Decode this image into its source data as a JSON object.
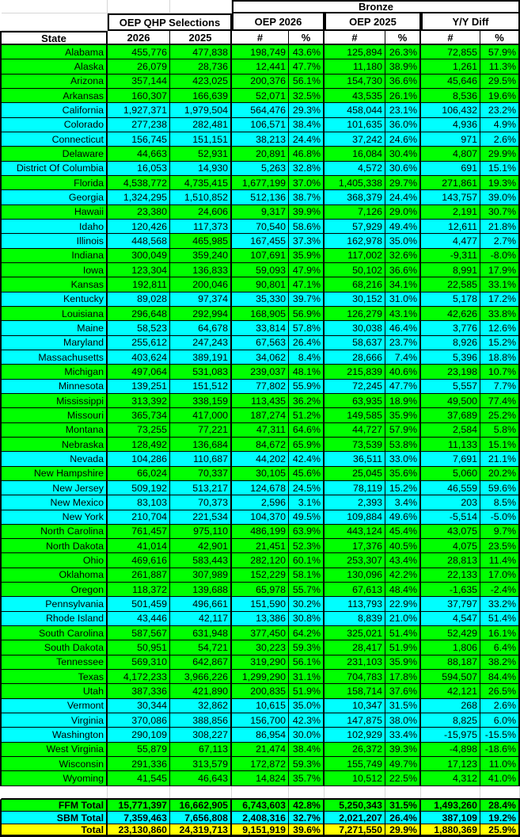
{
  "header": {
    "bronze": "Bronze",
    "oep_qhp_selections": "OEP QHP Selections",
    "oep_2026": "OEP 2026",
    "oep_2025": "OEP 2025",
    "yy_diff": "Y/Y Diff",
    "state": "State",
    "col_2026": "2026",
    "col_2025": "2025",
    "num_symbol": "#",
    "pct_symbol": "%"
  },
  "colors": {
    "ffm_green": "#00FF00",
    "sbm_cyan": "#00FFFF",
    "total_yellow": "#FFFF00",
    "border_black": "#000000"
  },
  "columns_order": [
    "qhp_2026",
    "qhp_2025",
    "bronze_2026_count",
    "bronze_2026_pct",
    "bronze_2025_count",
    "bronze_2025_pct",
    "yy_diff_count",
    "yy_diff_pct"
  ],
  "rows": [
    {
      "state": "Alabama",
      "market": "ffm",
      "values": [
        "455,776",
        "477,838",
        "198,749",
        "43.6%",
        "125,894",
        "26.3%",
        "72,855",
        "57.9%"
      ]
    },
    {
      "state": "Alaska",
      "market": "ffm",
      "values": [
        "26,079",
        "28,736",
        "12,441",
        "47.7%",
        "11,180",
        "38.9%",
        "1,261",
        "11.3%"
      ]
    },
    {
      "state": "Arizona",
      "market": "ffm",
      "values": [
        "357,144",
        "423,025",
        "200,376",
        "56.1%",
        "154,730",
        "36.6%",
        "45,646",
        "29.5%"
      ]
    },
    {
      "state": "Arkansas",
      "market": "ffm",
      "values": [
        "160,307",
        "166,639",
        "52,071",
        "32.5%",
        "43,535",
        "26.1%",
        "8,536",
        "19.6%"
      ]
    },
    {
      "state": "California",
      "market": "sbm",
      "values": [
        "1,927,371",
        "1,979,504",
        "564,476",
        "29.3%",
        "458,044",
        "23.1%",
        "106,432",
        "23.2%"
      ]
    },
    {
      "state": "Colorado",
      "market": "sbm",
      "values": [
        "277,238",
        "282,481",
        "106,571",
        "38.4%",
        "101,635",
        "36.0%",
        "4,936",
        "4.9%"
      ]
    },
    {
      "state": "Connecticut",
      "market": "sbm",
      "values": [
        "156,745",
        "151,151",
        "38,213",
        "24.4%",
        "37,242",
        "24.6%",
        "971",
        "2.6%"
      ]
    },
    {
      "state": "Delaware",
      "market": "ffm",
      "values": [
        "44,663",
        "52,931",
        "20,891",
        "46.8%",
        "16,084",
        "30.4%",
        "4,807",
        "29.9%"
      ]
    },
    {
      "state": "District Of Columbia",
      "market": "sbm",
      "values": [
        "16,053",
        "14,930",
        "5,263",
        "32.8%",
        "4,572",
        "30.6%",
        "691",
        "15.1%"
      ]
    },
    {
      "state": "Florida",
      "market": "ffm",
      "values": [
        "4,538,772",
        "4,735,415",
        "1,677,199",
        "37.0%",
        "1,405,338",
        "29.7%",
        "271,861",
        "19.3%"
      ]
    },
    {
      "state": "Georgia",
      "market": "sbm",
      "values": [
        "1,324,295",
        "1,510,852",
        "512,136",
        "38.7%",
        "368,379",
        "24.4%",
        "143,757",
        "39.0%"
      ]
    },
    {
      "state": "Hawaii",
      "market": "ffm",
      "values": [
        "23,380",
        "24,606",
        "9,317",
        "39.9%",
        "7,126",
        "29.0%",
        "2,191",
        "30.7%"
      ]
    },
    {
      "state": "Idaho",
      "market": "sbm",
      "values": [
        "120,426",
        "117,373",
        "70,540",
        "58.6%",
        "57,929",
        "49.4%",
        "12,611",
        "21.8%"
      ]
    },
    {
      "state": "Illinois",
      "market": "sbm",
      "values": [
        "448,568",
        "465,985",
        "167,455",
        "37.3%",
        "162,978",
        "35.0%",
        "4,477",
        "2.7%"
      ],
      "overrides": {
        "1": "ffm"
      }
    },
    {
      "state": "Indiana",
      "market": "ffm",
      "values": [
        "300,049",
        "359,240",
        "107,691",
        "35.9%",
        "117,002",
        "32.6%",
        "-9,311",
        "-8.0%"
      ]
    },
    {
      "state": "Iowa",
      "market": "ffm",
      "values": [
        "123,304",
        "136,833",
        "59,093",
        "47.9%",
        "50,102",
        "36.6%",
        "8,991",
        "17.9%"
      ]
    },
    {
      "state": "Kansas",
      "market": "ffm",
      "values": [
        "192,811",
        "200,046",
        "90,801",
        "47.1%",
        "68,216",
        "34.1%",
        "22,585",
        "33.1%"
      ]
    },
    {
      "state": "Kentucky",
      "market": "sbm",
      "values": [
        "89,028",
        "97,374",
        "35,330",
        "39.7%",
        "30,152",
        "31.0%",
        "5,178",
        "17.2%"
      ]
    },
    {
      "state": "Louisiana",
      "market": "ffm",
      "values": [
        "296,648",
        "292,994",
        "168,905",
        "56.9%",
        "126,279",
        "43.1%",
        "42,626",
        "33.8%"
      ]
    },
    {
      "state": "Maine",
      "market": "sbm",
      "values": [
        "58,523",
        "64,678",
        "33,814",
        "57.8%",
        "30,038",
        "46.4%",
        "3,776",
        "12.6%"
      ]
    },
    {
      "state": "Maryland",
      "market": "sbm",
      "values": [
        "255,612",
        "247,243",
        "67,563",
        "26.4%",
        "58,637",
        "23.7%",
        "8,926",
        "15.2%"
      ]
    },
    {
      "state": "Massachusetts",
      "market": "sbm",
      "values": [
        "403,624",
        "389,191",
        "34,062",
        "8.4%",
        "28,666",
        "7.4%",
        "5,396",
        "18.8%"
      ]
    },
    {
      "state": "Michigan",
      "market": "ffm",
      "values": [
        "497,064",
        "531,083",
        "239,037",
        "48.1%",
        "215,839",
        "40.6%",
        "23,198",
        "10.7%"
      ]
    },
    {
      "state": "Minnesota",
      "market": "sbm",
      "values": [
        "139,251",
        "151,512",
        "77,802",
        "55.9%",
        "72,245",
        "47.7%",
        "5,557",
        "7.7%"
      ]
    },
    {
      "state": "Mississippi",
      "market": "ffm",
      "values": [
        "313,392",
        "338,159",
        "113,435",
        "36.2%",
        "63,935",
        "18.9%",
        "49,500",
        "77.4%"
      ]
    },
    {
      "state": "Missouri",
      "market": "ffm",
      "values": [
        "365,734",
        "417,000",
        "187,274",
        "51.2%",
        "149,585",
        "35.9%",
        "37,689",
        "25.2%"
      ]
    },
    {
      "state": "Montana",
      "market": "ffm",
      "values": [
        "73,255",
        "77,221",
        "47,311",
        "64.6%",
        "44,727",
        "57.9%",
        "2,584",
        "5.8%"
      ]
    },
    {
      "state": "Nebraska",
      "market": "ffm",
      "values": [
        "128,492",
        "136,684",
        "84,672",
        "65.9%",
        "73,539",
        "53.8%",
        "11,133",
        "15.1%"
      ]
    },
    {
      "state": "Nevada",
      "market": "sbm",
      "values": [
        "104,286",
        "110,687",
        "44,202",
        "42.4%",
        "36,511",
        "33.0%",
        "7,691",
        "21.1%"
      ]
    },
    {
      "state": "New Hampshire",
      "market": "ffm",
      "values": [
        "66,024",
        "70,337",
        "30,105",
        "45.6%",
        "25,045",
        "35.6%",
        "5,060",
        "20.2%"
      ]
    },
    {
      "state": "New Jersey",
      "market": "sbm",
      "values": [
        "509,192",
        "513,217",
        "124,678",
        "24.5%",
        "78,119",
        "15.2%",
        "46,559",
        "59.6%"
      ]
    },
    {
      "state": "New Mexico",
      "market": "sbm",
      "values": [
        "83,103",
        "70,373",
        "2,596",
        "3.1%",
        "2,393",
        "3.4%",
        "203",
        "8.5%"
      ]
    },
    {
      "state": "New York",
      "market": "sbm",
      "values": [
        "210,704",
        "221,534",
        "104,370",
        "49.5%",
        "109,884",
        "49.6%",
        "-5,514",
        "-5.0%"
      ]
    },
    {
      "state": "North Carolina",
      "market": "ffm",
      "values": [
        "761,457",
        "975,110",
        "486,199",
        "63.9%",
        "443,124",
        "45.4%",
        "43,075",
        "9.7%"
      ]
    },
    {
      "state": "North Dakota",
      "market": "ffm",
      "values": [
        "41,014",
        "42,901",
        "21,451",
        "52.3%",
        "17,376",
        "40.5%",
        "4,075",
        "23.5%"
      ]
    },
    {
      "state": "Ohio",
      "market": "ffm",
      "values": [
        "469,616",
        "583,443",
        "282,120",
        "60.1%",
        "253,307",
        "43.4%",
        "28,813",
        "11.4%"
      ]
    },
    {
      "state": "Oklahoma",
      "market": "ffm",
      "values": [
        "261,887",
        "307,989",
        "152,229",
        "58.1%",
        "130,096",
        "42.2%",
        "22,133",
        "17.0%"
      ]
    },
    {
      "state": "Oregon",
      "market": "ffm",
      "values": [
        "118,372",
        "139,688",
        "65,978",
        "55.7%",
        "67,613",
        "48.4%",
        "-1,635",
        "-2.4%"
      ]
    },
    {
      "state": "Pennsylvania",
      "market": "sbm",
      "values": [
        "501,459",
        "496,661",
        "151,590",
        "30.2%",
        "113,793",
        "22.9%",
        "37,797",
        "33.2%"
      ]
    },
    {
      "state": "Rhode Island",
      "market": "sbm",
      "values": [
        "43,446",
        "42,117",
        "13,386",
        "30.8%",
        "8,839",
        "21.0%",
        "4,547",
        "51.4%"
      ]
    },
    {
      "state": "South Carolina",
      "market": "ffm",
      "values": [
        "587,567",
        "631,948",
        "377,450",
        "64.2%",
        "325,021",
        "51.4%",
        "52,429",
        "16.1%"
      ]
    },
    {
      "state": "South Dakota",
      "market": "ffm",
      "values": [
        "50,951",
        "54,721",
        "30,223",
        "59.3%",
        "28,417",
        "51.9%",
        "1,806",
        "6.4%"
      ]
    },
    {
      "state": "Tennessee",
      "market": "ffm",
      "values": [
        "569,310",
        "642,867",
        "319,290",
        "56.1%",
        "231,103",
        "35.9%",
        "88,187",
        "38.2%"
      ]
    },
    {
      "state": "Texas",
      "market": "ffm",
      "values": [
        "4,172,233",
        "3,966,226",
        "1,299,290",
        "31.1%",
        "704,783",
        "17.8%",
        "594,507",
        "84.4%"
      ]
    },
    {
      "state": "Utah",
      "market": "ffm",
      "values": [
        "387,336",
        "421,890",
        "200,835",
        "51.9%",
        "158,714",
        "37.6%",
        "42,121",
        "26.5%"
      ]
    },
    {
      "state": "Vermont",
      "market": "sbm",
      "values": [
        "30,344",
        "32,862",
        "10,615",
        "35.0%",
        "10,347",
        "31.5%",
        "268",
        "2.6%"
      ]
    },
    {
      "state": "Virginia",
      "market": "sbm",
      "values": [
        "370,086",
        "388,856",
        "156,700",
        "42.3%",
        "147,875",
        "38.0%",
        "8,825",
        "6.0%"
      ]
    },
    {
      "state": "Washington",
      "market": "sbm",
      "values": [
        "290,109",
        "308,227",
        "86,954",
        "30.0%",
        "102,929",
        "33.4%",
        "-15,975",
        "-15.5%"
      ]
    },
    {
      "state": "West Virginia",
      "market": "ffm",
      "values": [
        "55,879",
        "67,113",
        "21,474",
        "38.4%",
        "26,372",
        "39.3%",
        "-4,898",
        "-18.6%"
      ]
    },
    {
      "state": "Wisconsin",
      "market": "ffm",
      "values": [
        "291,336",
        "313,579",
        "172,872",
        "59.3%",
        "155,749",
        "49.7%",
        "17,123",
        "11.0%"
      ]
    },
    {
      "state": "Wyoming",
      "market": "ffm",
      "values": [
        "41,545",
        "46,643",
        "14,824",
        "35.7%",
        "10,512",
        "22.5%",
        "4,312",
        "41.0%"
      ]
    }
  ],
  "totals": [
    {
      "label": "FFM Total",
      "market": "ffm",
      "values": [
        "15,771,397",
        "16,662,905",
        "6,743,603",
        "42.8%",
        "5,250,343",
        "31.5%",
        "1,493,260",
        "28.4%"
      ]
    },
    {
      "label": "SBM Total",
      "market": "sbm",
      "values": [
        "7,359,463",
        "7,656,808",
        "2,408,316",
        "32.7%",
        "2,021,207",
        "26.4%",
        "387,109",
        "19.2%"
      ]
    },
    {
      "label": "Total",
      "market": "total",
      "values": [
        "23,130,860",
        "24,319,713",
        "9,151,919",
        "39.6%",
        "7,271,550",
        "29.9%",
        "1,880,369",
        "25.9%"
      ]
    }
  ]
}
